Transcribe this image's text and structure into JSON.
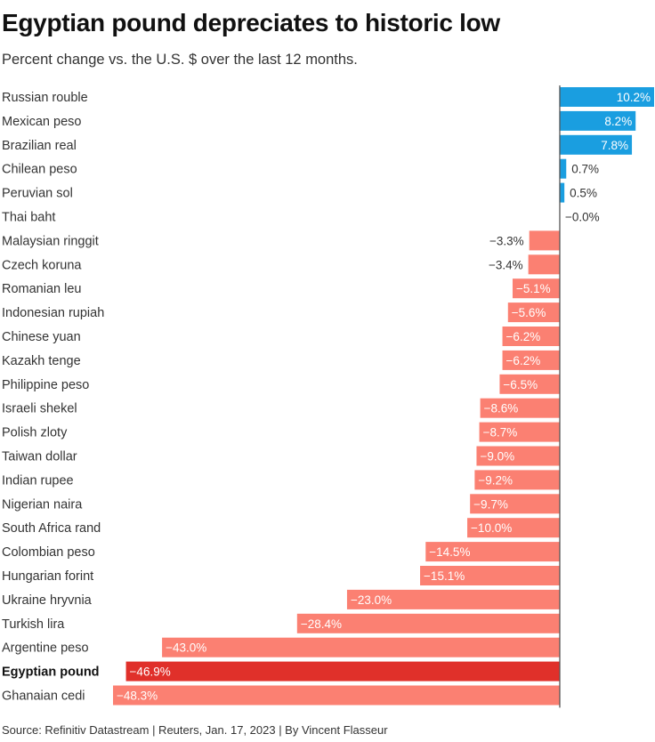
{
  "title": "Egyptian pound depreciates to historic low",
  "subtitle": "Percent change vs. the U.S. $ over the last 12 months.",
  "source": "Source: Refinitiv Datastream | Reuters, Jan. 17, 2023 | By Vincent Flasseur",
  "colors": {
    "positive": "#1a9ee0",
    "negative": "#fb8072",
    "highlight": "#e0302a",
    "axis": "#555555",
    "label_dark": "#333333",
    "label_light": "#ffffff"
  },
  "chart_data": {
    "type": "bar",
    "orientation": "horizontal",
    "xlim": [
      -48.3,
      10.2
    ],
    "highlight": "Egyptian pound",
    "categories": [
      "Russian rouble",
      "Mexican peso",
      "Brazilian real",
      "Chilean peso",
      "Peruvian sol",
      "Thai baht",
      "Malaysian ringgit",
      "Czech koruna",
      "Romanian leu",
      "Indonesian rupiah",
      "Chinese yuan",
      "Kazakh tenge",
      "Philippine peso",
      "Israeli shekel",
      "Polish zloty",
      "Taiwan dollar",
      "Indian rupee",
      "Nigerian naira",
      "South Africa rand",
      "Colombian peso",
      "Hungarian forint",
      "Ukraine hryvnia",
      "Turkish lira",
      "Argentine peso",
      "Egyptian pound",
      "Ghanaian cedi"
    ],
    "values": [
      10.2,
      8.2,
      7.8,
      0.7,
      0.5,
      -0.0,
      -3.3,
      -3.4,
      -5.1,
      -5.6,
      -6.2,
      -6.2,
      -6.5,
      -8.6,
      -8.7,
      -9.0,
      -9.2,
      -9.7,
      -10.0,
      -14.5,
      -15.1,
      -23.0,
      -28.4,
      -43.0,
      -46.9,
      -48.3
    ],
    "labels": [
      "10.2%",
      "8.2%",
      "7.8%",
      "0.7%",
      "0.5%",
      "−0.0%",
      "−3.3%",
      "−3.4%",
      "−5.1%",
      "−5.6%",
      "−6.2%",
      "−6.2%",
      "−6.5%",
      "−8.6%",
      "−8.7%",
      "−9.0%",
      "−9.2%",
      "−9.7%",
      "−10.0%",
      "−14.5%",
      "−15.1%",
      "−23.0%",
      "−28.4%",
      "−43.0%",
      "−46.9%",
      "−48.3%"
    ]
  }
}
